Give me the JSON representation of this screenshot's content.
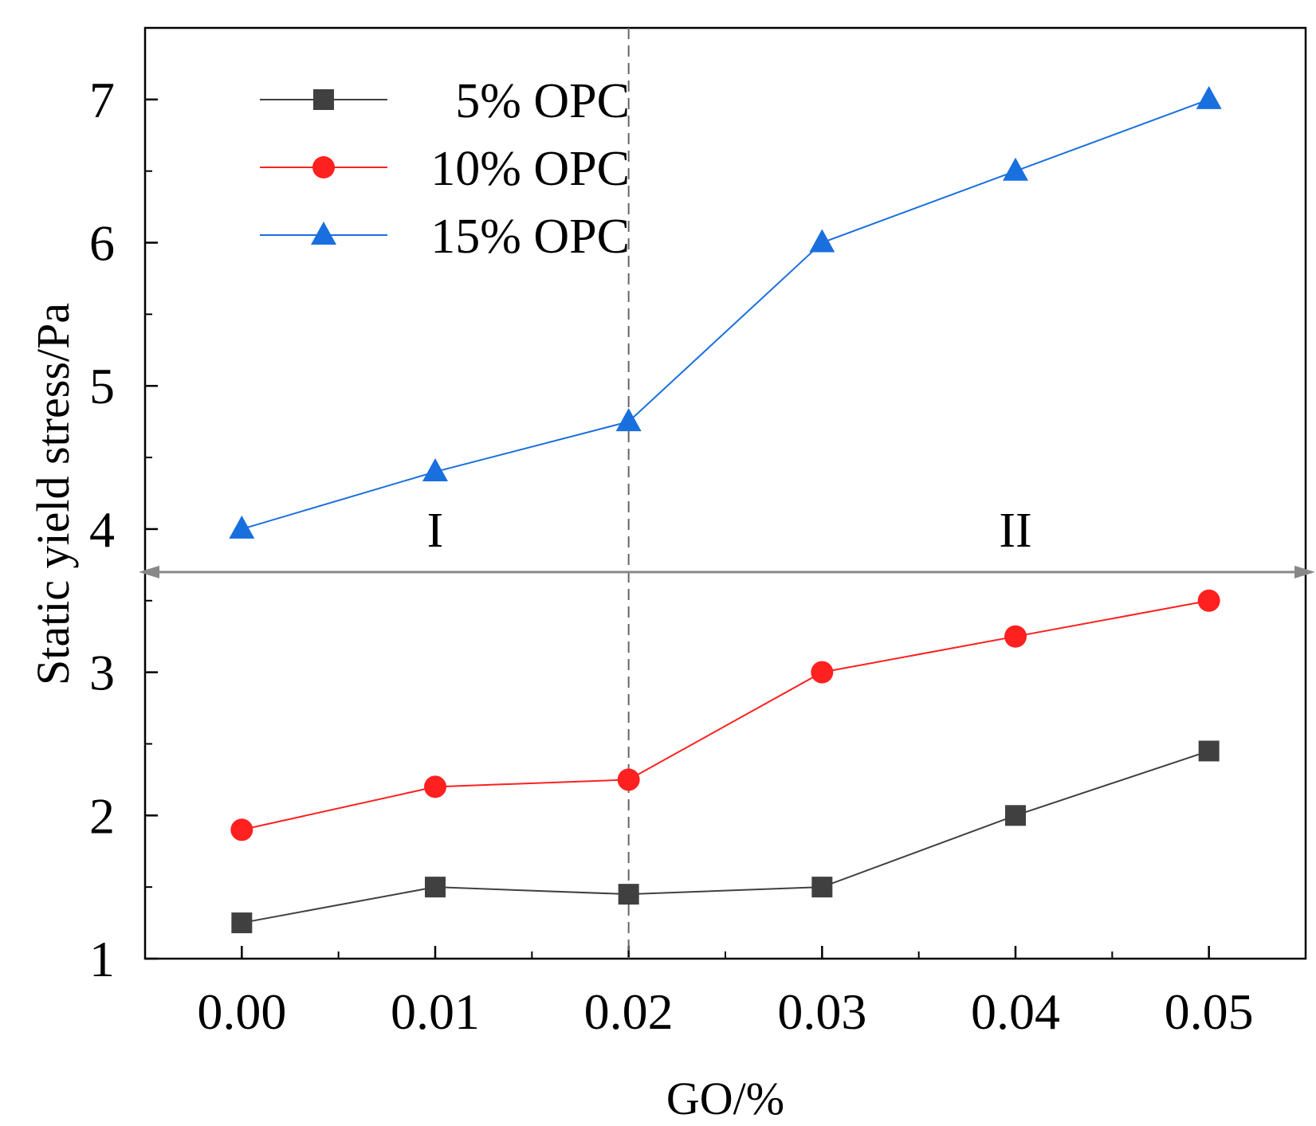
{
  "chart_data": {
    "type": "line",
    "title": "",
    "xlabel": "GO/%",
    "ylabel": "Static yield stress/Pa",
    "x": [
      0.0,
      0.01,
      0.02,
      0.03,
      0.04,
      0.05
    ],
    "xticks": [
      "0.00",
      "0.01",
      "0.02",
      "0.03",
      "0.04",
      "0.05"
    ],
    "xlim": [
      -0.005,
      0.055
    ],
    "yticks": [
      "1",
      "2",
      "3",
      "4",
      "5",
      "6",
      "7"
    ],
    "ylim": [
      1,
      7.5
    ],
    "series": [
      {
        "name": "5% OPC",
        "marker": "square",
        "color": "#404040",
        "values": [
          1.25,
          1.5,
          1.45,
          1.5,
          2.0,
          2.45
        ]
      },
      {
        "name": "10% OPC",
        "marker": "circle",
        "color": "#ff2020",
        "values": [
          1.9,
          2.2,
          2.25,
          3.0,
          3.25,
          3.5
        ]
      },
      {
        "name": "15% OPC",
        "marker": "triangle",
        "color": "#1a6fdf",
        "values": [
          4.0,
          4.4,
          4.75,
          6.0,
          6.5,
          7.0
        ]
      }
    ],
    "legend_position": "top-left",
    "annotations": {
      "vertical_dashed_line_x": 0.02,
      "horizontal_divider_y": 3.7,
      "region_labels": [
        "I",
        "II"
      ],
      "region_label_positions": [
        [
          0.01,
          4.0
        ],
        [
          0.04,
          4.0
        ]
      ]
    },
    "grid": false
  }
}
